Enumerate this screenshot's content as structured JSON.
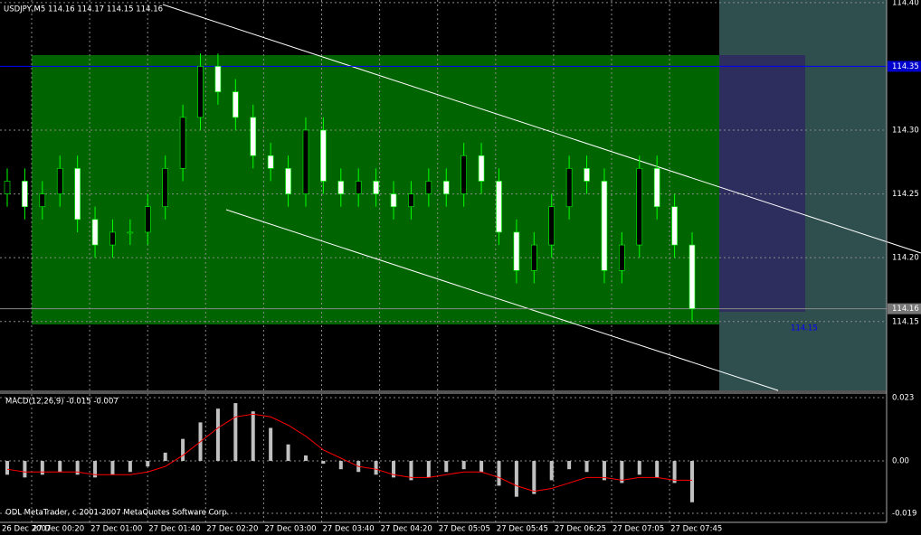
{
  "header": "USDJPY,M5  114.16 114.17 114.15 114.16",
  "copyright": "ODL MetaTrader, c 2001-2007 MetaQuotes Software Corp.",
  "time_labels": [
    "26 Dec 2007",
    "27 Dec 00:20",
    "27 Dec 01:00",
    "27 Dec 01:40",
    "27 Dec 02:20",
    "27 Dec 03:00",
    "27 Dec 03:40",
    "27 Dec 04:20",
    "27 Dec 05:05",
    "27 Dec 05:45",
    "27 Dec 06:25",
    "27 Dec 07:05",
    "27 Dec 07:45"
  ],
  "price_panel": {
    "ylim": [
      114.096,
      114.402
    ],
    "yticks": [
      {
        "value": 114.4,
        "label": "114.40"
      },
      {
        "value": 114.3,
        "label": "114.30"
      },
      {
        "value": 114.25,
        "label": "114.25"
      },
      {
        "value": 114.2,
        "label": "114.20"
      },
      {
        "value": 114.15,
        "label": "114.15"
      }
    ],
    "markers": [
      {
        "value": 114.35,
        "label": "114.35"
      },
      {
        "value": 114.16,
        "label": "114.16"
      }
    ],
    "annotation": {
      "value": 114.15,
      "label": "114.15"
    },
    "open": [
      114.25,
      114.26,
      114.24,
      114.25,
      114.27,
      114.23,
      114.21,
      114.22,
      114.22,
      114.24,
      114.27,
      114.31,
      114.35,
      114.33,
      114.31,
      114.28,
      114.27,
      114.25,
      114.3,
      114.26,
      114.25,
      114.26,
      114.25,
      114.24,
      114.25,
      114.26,
      114.25,
      114.28,
      114.26,
      114.22,
      114.19,
      114.21,
      114.24,
      114.27,
      114.26,
      114.19,
      114.21,
      114.27,
      114.24,
      114.21
    ],
    "high": [
      114.27,
      114.27,
      114.26,
      114.28,
      114.28,
      114.24,
      114.23,
      114.23,
      114.25,
      114.28,
      114.32,
      114.36,
      114.36,
      114.34,
      114.32,
      114.29,
      114.28,
      114.31,
      114.31,
      114.27,
      114.27,
      114.27,
      114.26,
      114.26,
      114.27,
      114.27,
      114.29,
      114.29,
      114.27,
      114.23,
      114.22,
      114.25,
      114.28,
      114.28,
      114.27,
      114.22,
      114.28,
      114.28,
      114.25,
      114.22
    ],
    "low": [
      114.24,
      114.23,
      114.23,
      114.24,
      114.22,
      114.2,
      114.2,
      114.21,
      114.21,
      114.23,
      114.26,
      114.3,
      114.32,
      114.3,
      114.27,
      114.26,
      114.24,
      114.24,
      114.25,
      114.24,
      114.24,
      114.24,
      114.23,
      114.23,
      114.24,
      114.24,
      114.24,
      114.25,
      114.21,
      114.18,
      114.18,
      114.2,
      114.23,
      114.25,
      114.18,
      114.18,
      114.2,
      114.23,
      114.2,
      114.15
    ],
    "close": [
      114.26,
      114.24,
      114.25,
      114.27,
      114.23,
      114.21,
      114.22,
      114.22,
      114.24,
      114.27,
      114.31,
      114.35,
      114.33,
      114.31,
      114.28,
      114.27,
      114.25,
      114.3,
      114.26,
      114.25,
      114.26,
      114.25,
      114.24,
      114.25,
      114.26,
      114.25,
      114.28,
      114.26,
      114.22,
      114.19,
      114.21,
      114.24,
      114.27,
      114.26,
      114.19,
      114.21,
      114.27,
      114.24,
      114.21,
      114.16
    ]
  },
  "macd_panel": {
    "label": "MACD(12,26,9) -0.015 -0.007",
    "ylim": [
      -0.0223,
      0.0243
    ],
    "yticks": [
      0.023,
      {
        "value": 0,
        "label": "0.00"
      },
      -0.019
    ],
    "histogram": [
      -0.005,
      -0.006,
      -0.005,
      -0.004,
      -0.005,
      -0.006,
      -0.005,
      -0.004,
      -0.002,
      0.003,
      0.008,
      0.014,
      0.019,
      0.021,
      0.018,
      0.012,
      0.006,
      0.002,
      -0.001,
      -0.003,
      -0.004,
      -0.005,
      -0.006,
      -0.007,
      -0.006,
      -0.004,
      -0.003,
      -0.004,
      -0.009,
      -0.013,
      -0.012,
      -0.007,
      -0.003,
      -0.004,
      -0.007,
      -0.008,
      -0.005,
      -0.006,
      -0.008,
      -0.015
    ],
    "signal": [
      -0.003,
      -0.004,
      -0.004,
      -0.004,
      -0.004,
      -0.005,
      -0.005,
      -0.005,
      -0.004,
      -0.002,
      0.002,
      0.007,
      0.012,
      0.016,
      0.017,
      0.016,
      0.013,
      0.009,
      0.004,
      0.001,
      -0.002,
      -0.003,
      -0.005,
      -0.006,
      -0.006,
      -0.005,
      -0.004,
      -0.004,
      -0.006,
      -0.009,
      -0.011,
      -0.01,
      -0.008,
      -0.006,
      -0.006,
      -0.007,
      -0.006,
      -0.006,
      -0.007,
      -0.007
    ]
  }
}
